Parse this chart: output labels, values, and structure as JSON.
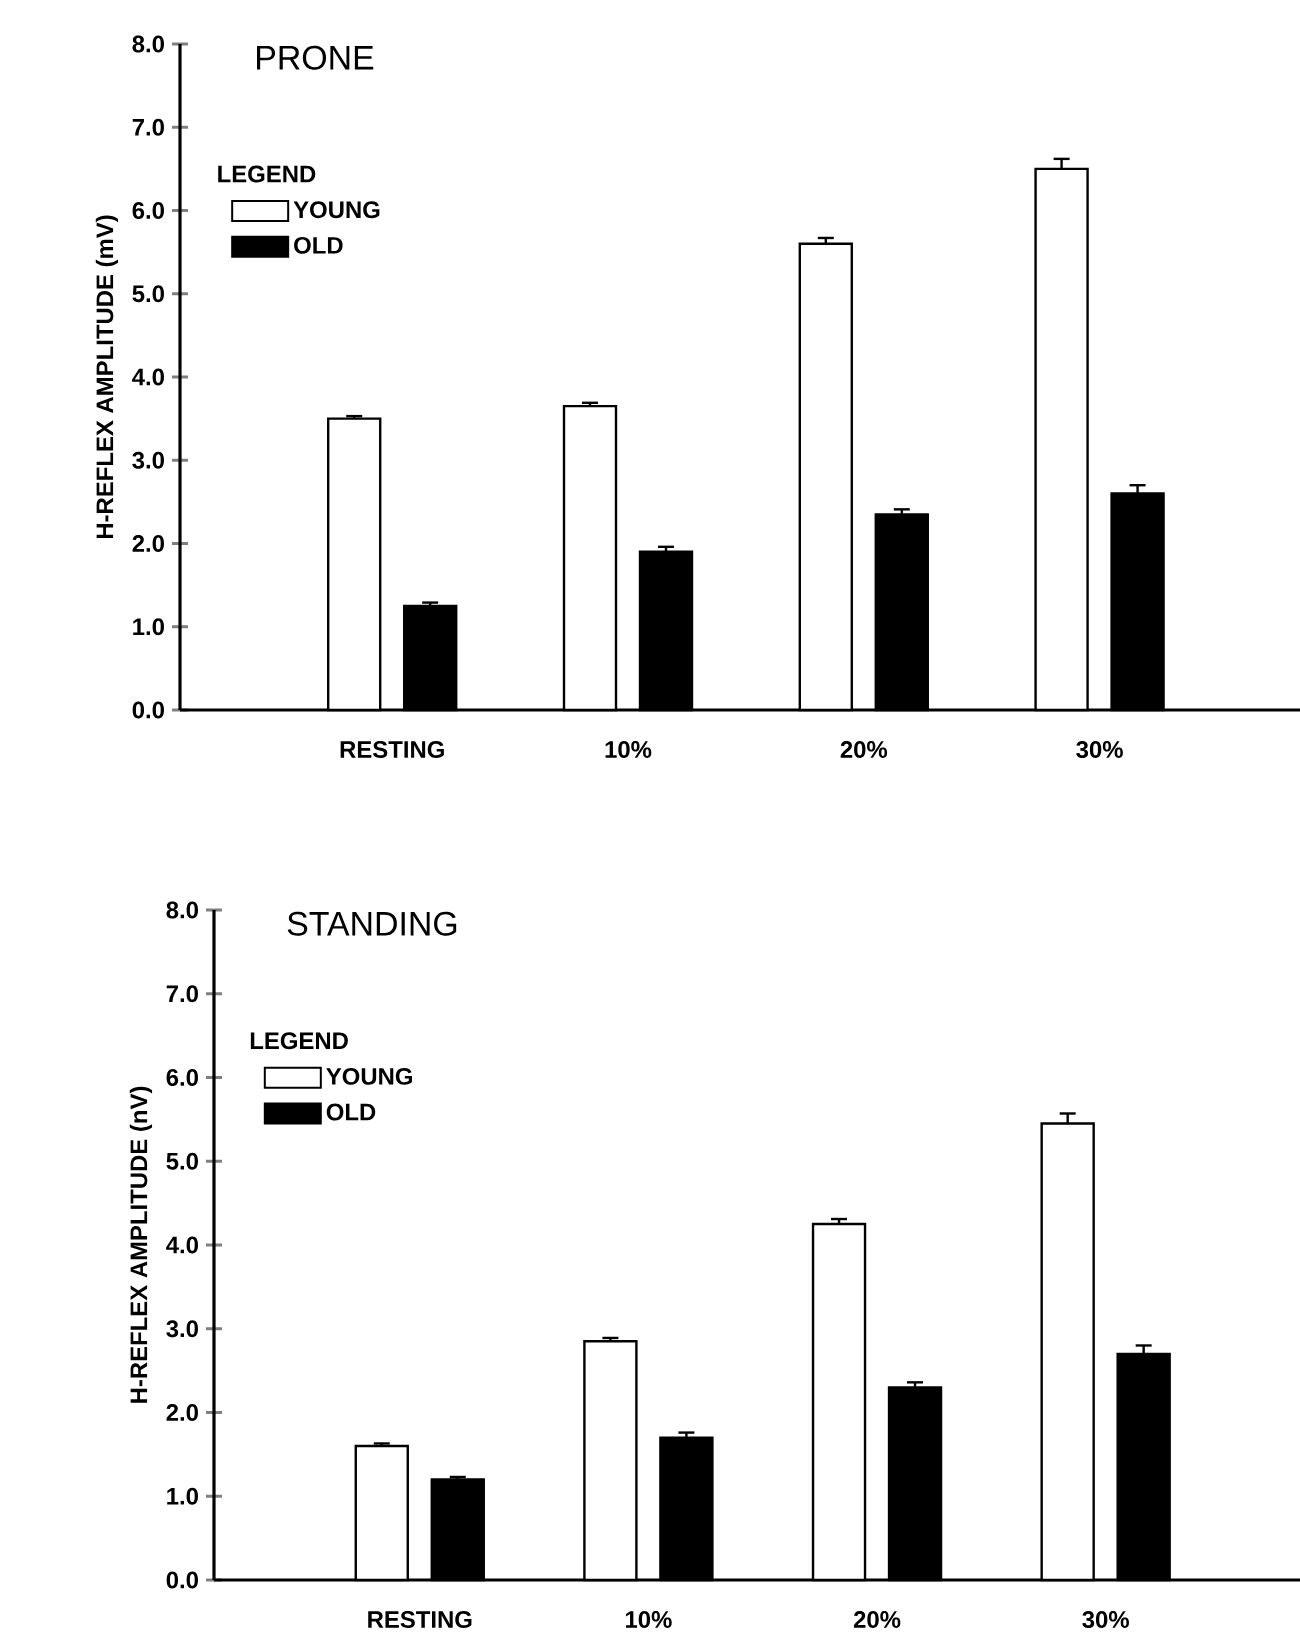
{
  "chart_data": [
    {
      "type": "bar",
      "title": "PRONE",
      "ylabel": "H-REFLEX AMPLITUDE (mV)",
      "legend_title": "LEGEND",
      "legend": "top left",
      "categories": [
        "RESTING",
        "10%",
        "20%",
        "30%"
      ],
      "series": [
        {
          "name": "YOUNG",
          "color": "#000000",
          "values": [
            3.5,
            3.65,
            5.6,
            6.5
          ],
          "errors": [
            0.03,
            0.04,
            0.07,
            0.12
          ]
        },
        {
          "name": "OLD",
          "color": "#000000",
          "values": [
            1.25,
            1.9,
            2.35,
            2.6
          ],
          "errors": [
            0.04,
            0.06,
            0.06,
            0.1
          ]
        }
      ],
      "ylim": [
        0,
        8
      ],
      "yticks": [
        {
          "value": 0,
          "label": "0.0"
        },
        {
          "value": 1,
          "label": "1.0"
        },
        {
          "value": 2,
          "label": "2.0"
        },
        {
          "value": 3,
          "label": "3.0"
        },
        {
          "value": 4,
          "label": "4.0"
        },
        {
          "value": 5,
          "label": "5.0"
        },
        {
          "value": 6,
          "label": "6.0"
        },
        {
          "value": 7,
          "label": "7.0"
        },
        {
          "value": 8,
          "label": "8.0"
        }
      ]
    },
    {
      "type": "bar",
      "title": "STANDING",
      "ylabel": "H-REFLEX AMPLITUDE (nV)",
      "legend_title": "LEGEND",
      "legend": "top left",
      "categories": [
        "RESTING",
        "10%",
        "20%",
        "30%"
      ],
      "series": [
        {
          "name": "YOUNG",
          "color": "#000000",
          "values": [
            1.6,
            2.85,
            4.25,
            5.45
          ],
          "errors": [
            0.03,
            0.04,
            0.06,
            0.12
          ]
        },
        {
          "name": "OLD",
          "color": "#000000",
          "values": [
            1.2,
            1.7,
            2.3,
            2.7
          ],
          "errors": [
            0.03,
            0.06,
            0.06,
            0.1
          ]
        }
      ],
      "ylim": [
        0,
        8
      ],
      "yticks": [
        {
          "value": 0,
          "label": "0.0"
        },
        {
          "value": 1,
          "label": "1.0"
        },
        {
          "value": 2,
          "label": "2.0"
        },
        {
          "value": 3,
          "label": "3.0"
        },
        {
          "value": 4,
          "label": "4.0"
        },
        {
          "value": 5,
          "label": "5.0"
        },
        {
          "value": 6,
          "label": "6.0"
        },
        {
          "value": 7,
          "label": "7.0"
        },
        {
          "value": 8,
          "label": "8.0"
        }
      ]
    }
  ]
}
